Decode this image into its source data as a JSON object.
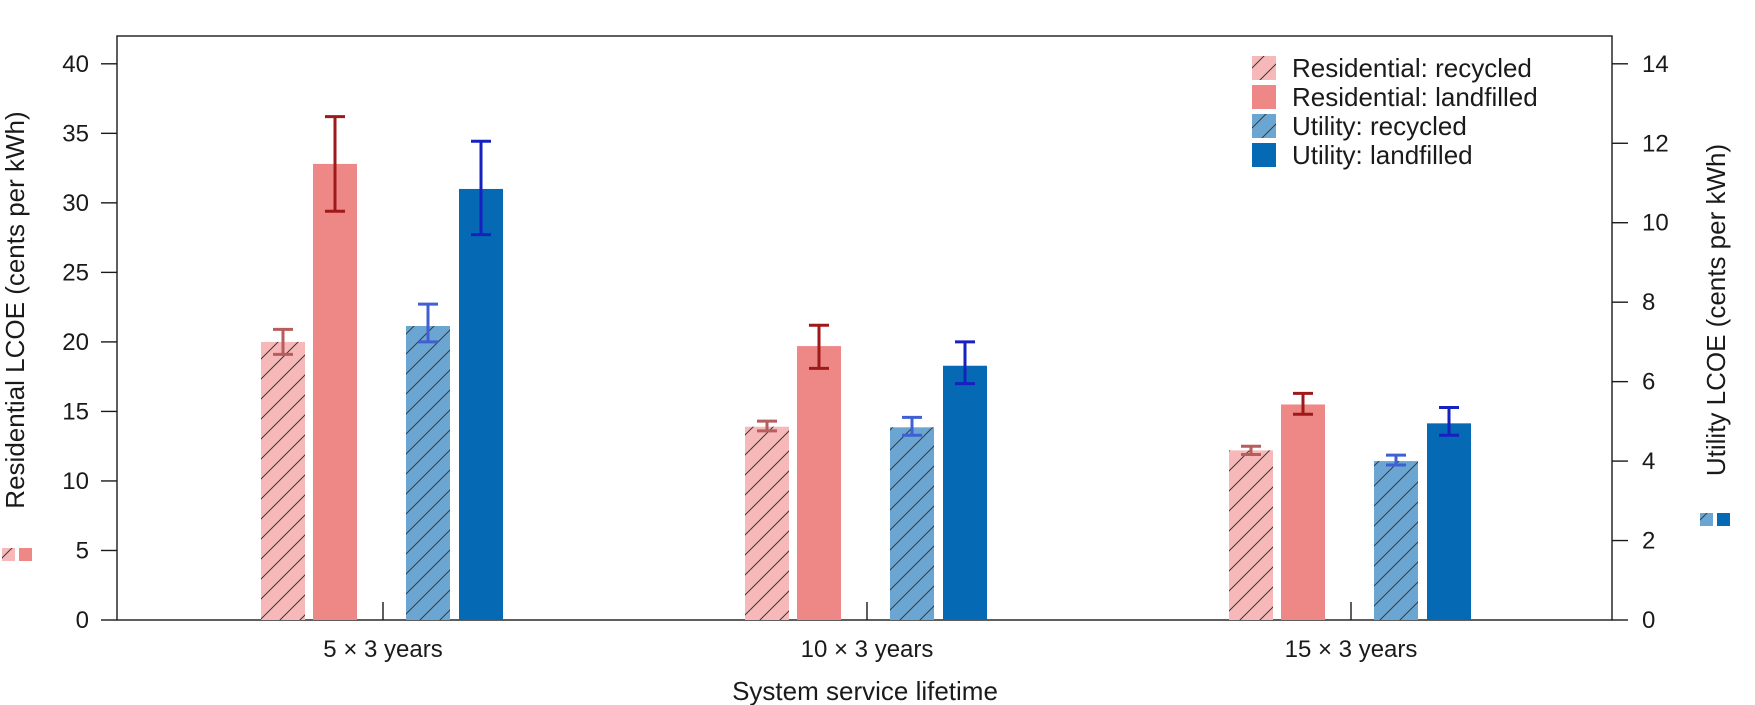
{
  "chart_data": {
    "type": "bar",
    "xlabel": "System service lifetime",
    "categories": [
      "5 × 3 years",
      "10 × 3 years",
      "15 × 3 years"
    ],
    "left_axis": {
      "label": "Residential LCOE (cents per kWh)",
      "ylim": [
        0,
        42
      ],
      "ticks": [
        0,
        5,
        10,
        15,
        20,
        25,
        30,
        35,
        40
      ]
    },
    "right_axis": {
      "label": "Utility LCOE (cents per kWh)",
      "ylim": [
        0,
        14.7
      ],
      "ticks": [
        0,
        2,
        4,
        6,
        8,
        10,
        12,
        14
      ]
    },
    "series": [
      {
        "name": "Residential: recycled",
        "axis": "left",
        "hatched": true,
        "color": "#f6b8b8",
        "error_color": "#b85c5c",
        "values": [
          20.0,
          13.9,
          12.2
        ],
        "err_low": [
          19.1,
          13.6,
          11.9
        ],
        "err_high": [
          20.9,
          14.3,
          12.5
        ]
      },
      {
        "name": "Residential: landfilled",
        "axis": "left",
        "hatched": false,
        "color": "#ee8887",
        "error_color": "#9e1a1a",
        "values": [
          32.8,
          19.7,
          15.5
        ],
        "err_low": [
          29.4,
          18.1,
          14.8
        ],
        "err_high": [
          36.2,
          21.2,
          16.3
        ]
      },
      {
        "name": "Utility: recycled",
        "axis": "right",
        "hatched": true,
        "color": "#6ba6d2",
        "error_color": "#3f5fd2",
        "values": [
          7.4,
          4.85,
          4.0
        ],
        "err_low": [
          7.0,
          4.65,
          3.9
        ],
        "err_high": [
          7.95,
          5.1,
          4.15
        ]
      },
      {
        "name": "Utility: landfilled",
        "axis": "right",
        "hatched": false,
        "color": "#0569b4",
        "error_color": "#1621c0",
        "values": [
          10.85,
          6.4,
          4.95
        ],
        "err_low": [
          9.7,
          5.95,
          4.65
        ],
        "err_high": [
          12.05,
          7.0,
          5.35
        ]
      }
    ],
    "legend_position": "top-right",
    "grid": false
  }
}
